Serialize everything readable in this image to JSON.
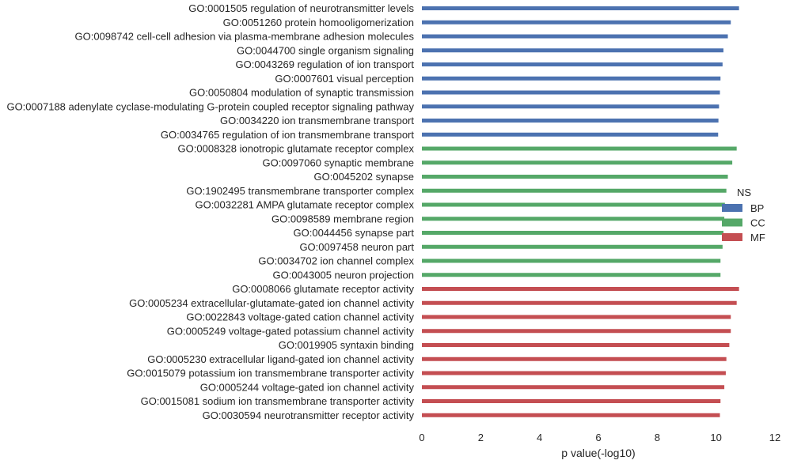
{
  "chart_data": {
    "type": "bar",
    "orientation": "horizontal",
    "xlabel": "p value(-log10)",
    "ylabel": "",
    "title": "",
    "xlim": [
      0,
      12
    ],
    "xticks": [
      0,
      2,
      4,
      6,
      8,
      10,
      12
    ],
    "grid": false,
    "legend": {
      "title": "NS",
      "placement": "right",
      "entries": [
        {
          "name": "BP",
          "color": "#4c72b0"
        },
        {
          "name": "CC",
          "color": "#55a868"
        },
        {
          "name": "MF",
          "color": "#c44e52"
        }
      ]
    },
    "bars": [
      {
        "label": "GO:0001505 regulation of neurotransmitter levels",
        "value": 10.78,
        "group": "BP"
      },
      {
        "label": "GO:0051260 protein homooligomerization",
        "value": 10.5,
        "group": "BP"
      },
      {
        "label": "GO:0098742 cell-cell adhesion via plasma-membrane adhesion molecules",
        "value": 10.4,
        "group": "BP"
      },
      {
        "label": "GO:0044700 single organism signaling",
        "value": 10.25,
        "group": "BP"
      },
      {
        "label": "GO:0043269 regulation of ion transport",
        "value": 10.22,
        "group": "BP"
      },
      {
        "label": "GO:0007601 visual perception",
        "value": 10.15,
        "group": "BP"
      },
      {
        "label": "GO:0050804 modulation of synaptic transmission",
        "value": 10.13,
        "group": "BP"
      },
      {
        "label": "GO:0007188 adenylate cyclase-modulating G-protein coupled receptor signaling pathway",
        "value": 10.1,
        "group": "BP"
      },
      {
        "label": "GO:0034220 ion transmembrane transport",
        "value": 10.08,
        "group": "BP"
      },
      {
        "label": "GO:0034765 regulation of ion transmembrane transport",
        "value": 10.07,
        "group": "BP"
      },
      {
        "label": "GO:0008328 ionotropic glutamate receptor complex",
        "value": 10.7,
        "group": "CC"
      },
      {
        "label": "GO:0097060 synaptic membrane",
        "value": 10.55,
        "group": "CC"
      },
      {
        "label": "GO:0045202 synapse",
        "value": 10.4,
        "group": "CC"
      },
      {
        "label": "GO:1902495 transmembrane transporter complex",
        "value": 10.35,
        "group": "CC"
      },
      {
        "label": "GO:0032281 AMPA glutamate receptor complex",
        "value": 10.3,
        "group": "CC"
      },
      {
        "label": "GO:0098589 membrane region",
        "value": 10.28,
        "group": "CC"
      },
      {
        "label": "GO:0044456 synapse part",
        "value": 10.25,
        "group": "CC"
      },
      {
        "label": "GO:0097458 neuron part",
        "value": 10.22,
        "group": "CC"
      },
      {
        "label": "GO:0034702 ion channel complex",
        "value": 10.15,
        "group": "CC"
      },
      {
        "label": "GO:0043005 neuron projection",
        "value": 10.15,
        "group": "CC"
      },
      {
        "label": "GO:0008066 glutamate receptor activity",
        "value": 10.78,
        "group": "MF"
      },
      {
        "label": "GO:0005234 extracellular-glutamate-gated ion channel activity",
        "value": 10.7,
        "group": "MF"
      },
      {
        "label": "GO:0022843 voltage-gated cation channel activity",
        "value": 10.5,
        "group": "MF"
      },
      {
        "label": "GO:0005249 voltage-gated potassium channel activity",
        "value": 10.5,
        "group": "MF"
      },
      {
        "label": "GO:0019905 syntaxin binding",
        "value": 10.45,
        "group": "MF"
      },
      {
        "label": "GO:0005230 extracellular ligand-gated ion channel activity",
        "value": 10.35,
        "group": "MF"
      },
      {
        "label": "GO:0015079 potassium ion transmembrane transporter activity",
        "value": 10.33,
        "group": "MF"
      },
      {
        "label": "GO:0005244 voltage-gated ion channel activity",
        "value": 10.28,
        "group": "MF"
      },
      {
        "label": "GO:0015081 sodium ion transmembrane transporter activity",
        "value": 10.15,
        "group": "MF"
      },
      {
        "label": "GO:0030594 neurotransmitter receptor activity",
        "value": 10.13,
        "group": "MF"
      }
    ]
  }
}
